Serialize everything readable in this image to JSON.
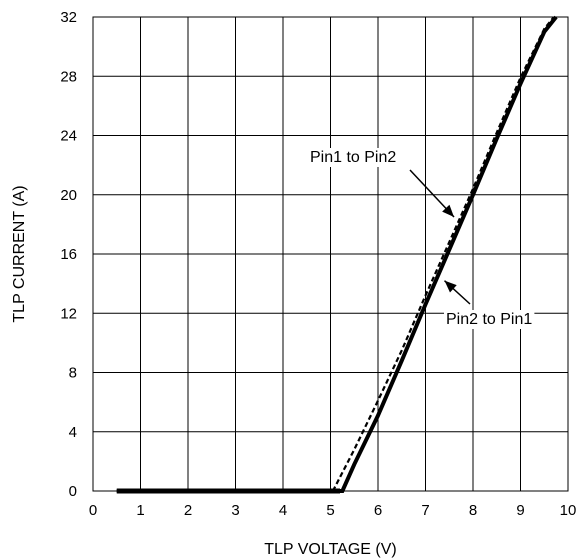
{
  "chart_data": {
    "type": "line",
    "title": "",
    "xlabel": "TLP VOLTAGE (V)",
    "ylabel": "TLP CURRENT (A)",
    "xlim": [
      0,
      10
    ],
    "ylim": [
      0,
      32
    ],
    "x_ticks": [
      0,
      1,
      2,
      3,
      4,
      5,
      6,
      7,
      8,
      9,
      10
    ],
    "y_ticks": [
      0,
      4,
      8,
      12,
      16,
      20,
      24,
      28,
      32
    ],
    "grid": true,
    "legend": "none",
    "series": [
      {
        "name": "Pin1 to Pin2",
        "style": "dashed",
        "color": "#000000",
        "x": [
          0.5,
          5.0,
          5.05,
          5.5,
          6.0,
          6.5,
          7.0,
          7.5,
          8.0,
          8.5,
          9.0,
          9.5,
          9.7
        ],
        "y": [
          0.0,
          0.0,
          0.0,
          2.8,
          6.1,
          9.5,
          13.2,
          16.8,
          20.4,
          24.2,
          27.9,
          31.2,
          32.0
        ]
      },
      {
        "name": "Pin2 to Pin1",
        "style": "solid",
        "color": "#000000",
        "x": [
          0.5,
          5.0,
          5.25,
          5.5,
          6.0,
          6.5,
          7.0,
          7.5,
          8.0,
          8.5,
          9.0,
          9.5,
          9.75
        ],
        "y": [
          0.0,
          0.0,
          0.0,
          1.8,
          5.1,
          8.8,
          12.6,
          16.3,
          20.0,
          23.8,
          27.5,
          31.0,
          32.0
        ]
      }
    ],
    "annotations": [
      {
        "text": "Pin1 to Pin2",
        "target_x": 7.6,
        "target_y": 18.5
      },
      {
        "text": "Pin2 to Pin1",
        "target_x": 7.4,
        "target_y": 14.2
      }
    ]
  }
}
